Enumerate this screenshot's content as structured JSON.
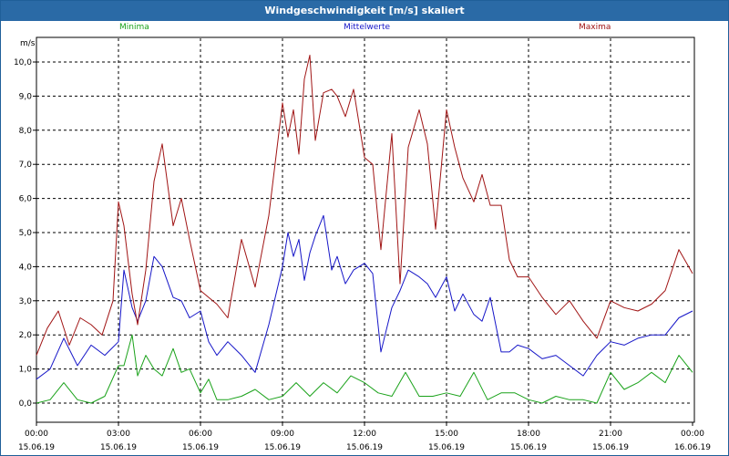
{
  "window": {
    "title": "Windgeschwindigkeit [m/s] skaliert"
  },
  "colors": {
    "min": "#1aa21a",
    "mean": "#1616c8",
    "max": "#a01414",
    "grid": "#000000",
    "titlebar": "#2a6aa6"
  },
  "chart_data": {
    "type": "line",
    "ylabel": "m/s",
    "ylim": [
      0,
      10.6
    ],
    "yticks": [
      "0,0",
      "1,0",
      "2,0",
      "3,0",
      "4,0",
      "5,0",
      "6,0",
      "7,0",
      "8,0",
      "9,0",
      "10,0"
    ],
    "xlim": [
      0,
      24
    ],
    "xticks": [
      {
        "x": 0,
        "time": "00:00",
        "date": "15.06.19"
      },
      {
        "x": 3,
        "time": "03:00",
        "date": "15.06.19"
      },
      {
        "x": 6,
        "time": "06:00",
        "date": "15.06.19"
      },
      {
        "x": 9,
        "time": "09:00",
        "date": "15.06.19"
      },
      {
        "x": 12,
        "time": "12:00",
        "date": "15.06.19"
      },
      {
        "x": 15,
        "time": "15:00",
        "date": "15.06.19"
      },
      {
        "x": 18,
        "time": "18:00",
        "date": "15.06.19"
      },
      {
        "x": 21,
        "time": "21:00",
        "date": "15.06.19"
      },
      {
        "x": 24,
        "time": "00:00",
        "date": "16.06.19"
      }
    ],
    "grid": true,
    "x_unit": "hours",
    "series": [
      {
        "name": "Minima",
        "color": "#1aa21a",
        "x": [
          0,
          0.5,
          1,
          1.5,
          2,
          2.5,
          3,
          3.2,
          3.5,
          3.7,
          4,
          4.3,
          4.6,
          5,
          5.3,
          5.6,
          6,
          6.3,
          6.6,
          7,
          7.5,
          8,
          8.5,
          9,
          9.5,
          10,
          10.5,
          11,
          11.5,
          12,
          12.5,
          13,
          13.5,
          14,
          14.5,
          15,
          15.5,
          16,
          16.5,
          17,
          17.5,
          18,
          18.5,
          19,
          19.5,
          20,
          20.5,
          21,
          21.5,
          22,
          22.5,
          23,
          23.5,
          24
        ],
        "values": [
          0,
          0.1,
          0.6,
          0.1,
          0,
          0.2,
          1.1,
          1.1,
          2.0,
          0.8,
          1.4,
          1.0,
          0.8,
          1.6,
          0.9,
          1.0,
          0.3,
          0.7,
          0.1,
          0.1,
          0.2,
          0.4,
          0.1,
          0.2,
          0.6,
          0.2,
          0.6,
          0.3,
          0.8,
          0.6,
          0.3,
          0.2,
          0.9,
          0.2,
          0.2,
          0.3,
          0.2,
          0.9,
          0.1,
          0.3,
          0.3,
          0.1,
          0.0,
          0.2,
          0.1,
          0.1,
          0.0,
          0.9,
          0.4,
          0.6,
          0.9,
          0.6,
          1.4,
          0.9
        ]
      },
      {
        "name": "Mittelwerte",
        "color": "#1616c8",
        "x": [
          0,
          0.5,
          1,
          1.5,
          2,
          2.5,
          3,
          3.2,
          3.5,
          3.7,
          4,
          4.3,
          4.6,
          5,
          5.3,
          5.6,
          6,
          6.3,
          6.6,
          7,
          7.5,
          8,
          8.5,
          9,
          9.2,
          9.4,
          9.6,
          9.8,
          10,
          10.2,
          10.5,
          10.8,
          11,
          11.3,
          11.6,
          12,
          12.3,
          12.6,
          13,
          13.3,
          13.6,
          14,
          14.3,
          14.6,
          15,
          15.3,
          15.6,
          16,
          16.3,
          16.6,
          17,
          17.3,
          17.6,
          18,
          18.5,
          19,
          19.5,
          20,
          20.5,
          21,
          21.5,
          22,
          22.5,
          23,
          23.5,
          24
        ],
        "values": [
          0.7,
          1.0,
          1.9,
          1.1,
          1.7,
          1.4,
          1.8,
          3.9,
          2.8,
          2.4,
          3.0,
          4.3,
          4.0,
          3.1,
          3.0,
          2.5,
          2.7,
          1.8,
          1.4,
          1.8,
          1.4,
          0.9,
          2.3,
          4.0,
          5.0,
          4.3,
          4.8,
          3.6,
          4.4,
          4.9,
          5.5,
          3.9,
          4.3,
          3.5,
          3.9,
          4.1,
          3.8,
          1.5,
          2.8,
          3.3,
          3.9,
          3.7,
          3.5,
          3.1,
          3.7,
          2.7,
          3.2,
          2.6,
          2.4,
          3.1,
          1.5,
          1.5,
          1.7,
          1.6,
          1.3,
          1.4,
          1.1,
          0.8,
          1.4,
          1.8,
          1.7,
          1.9,
          2.0,
          2.0,
          2.5,
          2.7
        ]
      },
      {
        "name": "Maxima",
        "color": "#a01414",
        "x": [
          0,
          0.4,
          0.8,
          1.2,
          1.6,
          2,
          2.4,
          2.8,
          3,
          3.2,
          3.5,
          3.7,
          4,
          4.3,
          4.6,
          5,
          5.3,
          5.6,
          6,
          6.3,
          6.6,
          7,
          7.5,
          8,
          8.5,
          9,
          9.2,
          9.4,
          9.6,
          9.8,
          10,
          10.2,
          10.5,
          10.8,
          11,
          11.3,
          11.6,
          12,
          12.3,
          12.6,
          13,
          13.3,
          13.6,
          14,
          14.3,
          14.6,
          15,
          15.3,
          15.6,
          16,
          16.3,
          16.6,
          17,
          17.3,
          17.6,
          18,
          18.5,
          19,
          19.5,
          20,
          20.5,
          21,
          21.5,
          22,
          22.5,
          23,
          23.5,
          24
        ],
        "values": [
          1.4,
          2.2,
          2.7,
          1.7,
          2.5,
          2.3,
          2.0,
          3.0,
          5.9,
          5.2,
          3.2,
          2.3,
          3.9,
          6.5,
          7.6,
          5.2,
          6.0,
          4.8,
          3.3,
          3.1,
          2.9,
          2.5,
          4.8,
          3.4,
          5.5,
          8.8,
          7.8,
          8.6,
          7.3,
          9.5,
          10.2,
          7.7,
          9.1,
          9.2,
          9.0,
          8.4,
          9.2,
          7.2,
          7.0,
          4.5,
          7.9,
          3.5,
          7.5,
          8.6,
          7.6,
          5.1,
          8.6,
          7.5,
          6.6,
          5.9,
          6.7,
          5.8,
          5.8,
          4.2,
          3.7,
          3.7,
          3.1,
          2.6,
          3.0,
          2.4,
          1.9,
          3.0,
          2.8,
          2.7,
          2.9,
          3.3,
          4.5,
          3.8
        ]
      }
    ]
  }
}
